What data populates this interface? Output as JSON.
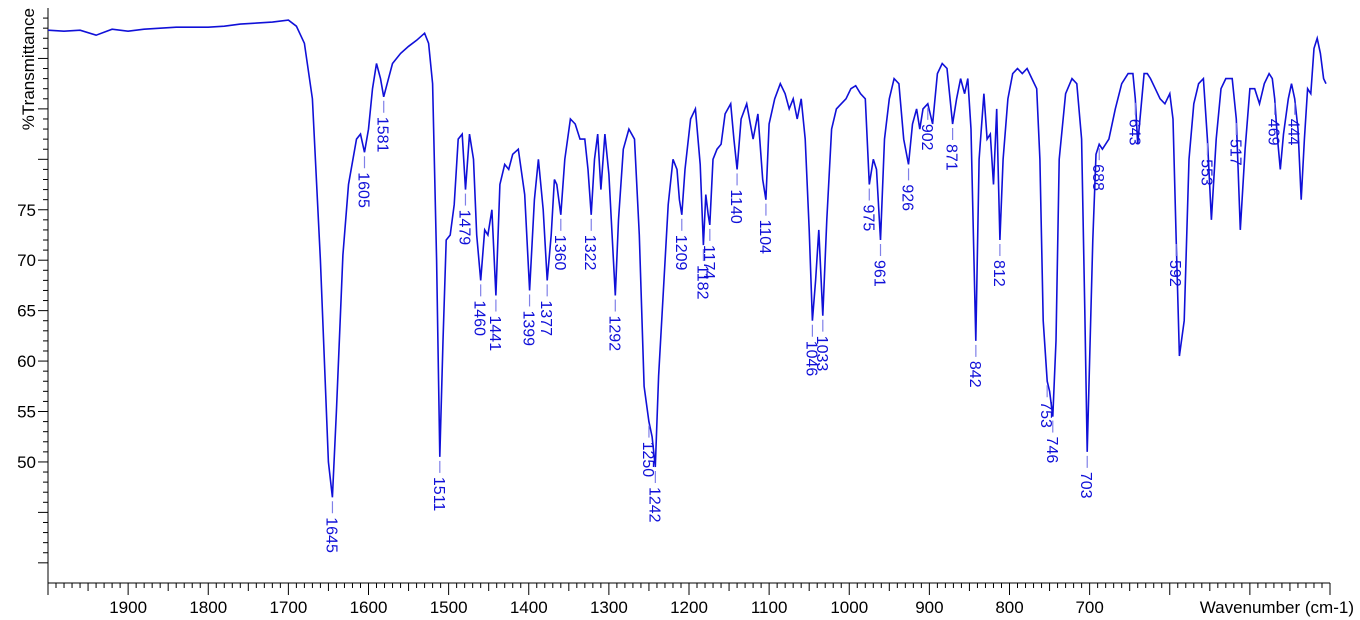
{
  "chart_data": {
    "type": "line",
    "xlabel": "Wavenumber (cm-1)",
    "ylabel": "%Transmittance",
    "xlim": [
      2000,
      400
    ],
    "ylim": [
      38,
      95
    ],
    "x_reversed": true,
    "x_ticks": [
      1900,
      1800,
      1700,
      1600,
      1500,
      1400,
      1300,
      1200,
      1100,
      1000,
      900,
      800,
      700
    ],
    "y_ticks": [
      50,
      55,
      60,
      65,
      70,
      75
    ],
    "grid": false,
    "legend": "none",
    "series": [
      {
        "color": "#1010d8",
        "x": [
          2000,
          1980,
          1960,
          1940,
          1920,
          1900,
          1880,
          1860,
          1840,
          1820,
          1800,
          1780,
          1760,
          1740,
          1720,
          1700,
          1690,
          1680,
          1670,
          1660,
          1650,
          1645,
          1640,
          1632,
          1625,
          1615,
          1610,
          1605,
          1600,
          1595,
          1590,
          1585,
          1581,
          1575,
          1570,
          1560,
          1550,
          1540,
          1530,
          1525,
          1520,
          1515,
          1511,
          1507,
          1503,
          1498,
          1493,
          1488,
          1483,
          1479,
          1474,
          1469,
          1465,
          1460,
          1455,
          1451,
          1446,
          1441,
          1436,
          1430,
          1425,
          1420,
          1413,
          1405,
          1399,
          1393,
          1388,
          1382,
          1377,
          1372,
          1368,
          1365,
          1360,
          1355,
          1348,
          1342,
          1336,
          1330,
          1326,
          1322,
          1318,
          1314,
          1310,
          1305,
          1300,
          1296,
          1292,
          1288,
          1282,
          1275,
          1268,
          1262,
          1256,
          1250,
          1246,
          1242,
          1238,
          1232,
          1226,
          1220,
          1215,
          1212,
          1209,
          1205,
          1198,
          1192,
          1186,
          1182,
          1179,
          1176,
          1174,
          1170,
          1165,
          1160,
          1155,
          1148,
          1144,
          1140,
          1135,
          1128,
          1120,
          1114,
          1108,
          1104,
          1100,
          1093,
          1086,
          1080,
          1075,
          1070,
          1065,
          1060,
          1055,
          1050,
          1046,
          1042,
          1038,
          1033,
          1028,
          1022,
          1016,
          1010,
          1004,
          998,
          992,
          986,
          980,
          975,
          970,
          966,
          961,
          956,
          950,
          944,
          938,
          932,
          926,
          921,
          916,
          912,
          908,
          902,
          896,
          890,
          884,
          878,
          871,
          866,
          861,
          856,
          852,
          848,
          842,
          838,
          832,
          828,
          824,
          820,
          816,
          812,
          808,
          802,
          796,
          790,
          784,
          778,
          772,
          766,
          762,
          758,
          753,
          750,
          746,
          742,
          738,
          730,
          722,
          716,
          710,
          706,
          703,
          700,
          696,
          692,
          688,
          684,
          676,
          668,
          660,
          652,
          646,
          643,
          640,
          636,
          632,
          628,
          624,
          618,
          612,
          606,
          600,
          596,
          592,
          588,
          582,
          576,
          570,
          564,
          558,
          553,
          548,
          542,
          536,
          530,
          526,
          522,
          517,
          512,
          506,
          500,
          494,
          488,
          482,
          476,
          472,
          469,
          466,
          462,
          458,
          452,
          448,
          444,
          440,
          436,
          432,
          428,
          424,
          420,
          416,
          412,
          408,
          405
        ]
      }
    ]
  },
  "peak_labels": [
    "1645",
    "1605",
    "1581",
    "1511",
    "1479",
    "1460",
    "1441",
    "1399",
    "1377",
    "1360",
    "1322",
    "1292",
    "1250",
    "1242",
    "1209",
    "1182",
    "1174",
    "1140",
    "1104",
    "1046",
    "1033",
    "975",
    "961",
    "926",
    "902",
    "871",
    "842",
    "812",
    "753",
    "746",
    "703",
    "688",
    "643",
    "592",
    "553",
    "517",
    "469",
    "444"
  ],
  "peaks": [
    1645,
    1605,
    1581,
    1511,
    1479,
    1460,
    1441,
    1399,
    1377,
    1360,
    1322,
    1292,
    1250,
    1242,
    1209,
    1182,
    1174,
    1140,
    1104,
    1046,
    1033,
    975,
    961,
    926,
    902,
    871,
    842,
    812,
    753,
    746,
    703,
    688,
    643,
    592,
    553,
    517,
    469,
    444
  ],
  "axes": {
    "x_tick_labels": [
      "1900",
      "1800",
      "1700",
      "1600",
      "1500",
      "1400",
      "1300",
      "1200",
      "1100",
      "1000",
      "900",
      "800",
      "700"
    ],
    "y_tick_labels": [
      "50",
      "55",
      "60",
      "65",
      "70",
      "75"
    ]
  }
}
